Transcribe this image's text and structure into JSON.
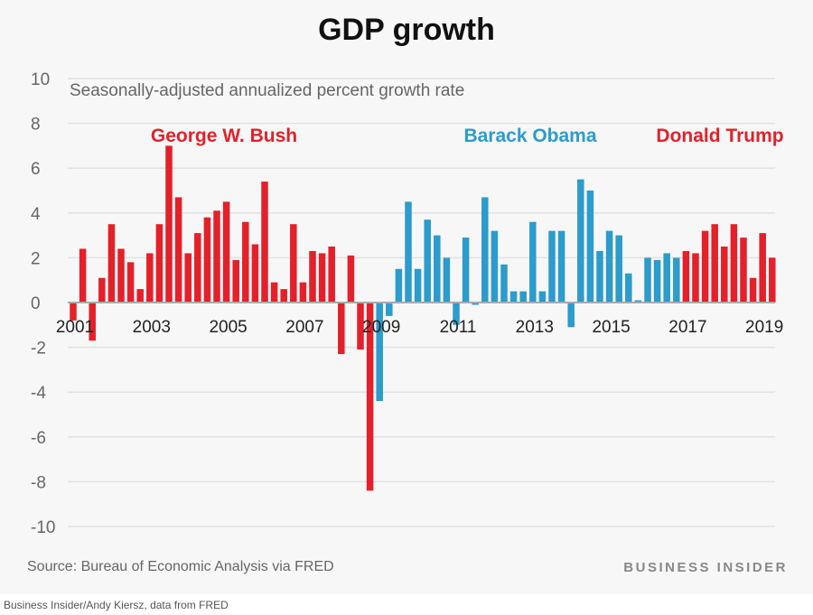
{
  "title": "GDP growth",
  "source": "Source: Bureau of Economic Analysis via FRED",
  "brand": "BUSINESS INSIDER",
  "credit": "Business Insider/Andy Kiersz, data from FRED",
  "chart_data": {
    "type": "bar",
    "title": "GDP growth",
    "subtitle": "Seasonally-adjusted annualized percent growth rate",
    "ylim": [
      -10,
      10
    ],
    "yticks": [
      -10,
      -8,
      -6,
      -4,
      -2,
      0,
      2,
      4,
      6,
      8,
      10
    ],
    "xtick_labels": [
      "2001",
      "2003",
      "2005",
      "2007",
      "2009",
      "2011",
      "2013",
      "2015",
      "2017",
      "2019"
    ],
    "grid": true,
    "colors": {
      "Bush": "#e4202a",
      "Obama": "#2b9ccb",
      "Trump": "#e4202a"
    },
    "annotations": [
      {
        "text": "George W. Bush",
        "color": "#e4202a"
      },
      {
        "text": "Barack Obama",
        "color": "#2b9ccb"
      },
      {
        "text": "Donald Trump",
        "color": "#e4202a"
      }
    ],
    "start_quarter": "2001 Q1",
    "series": [
      {
        "name": "George W. Bush",
        "values": [
          -0.8,
          2.4,
          -1.7,
          1.1,
          3.5,
          2.4,
          1.8,
          0.6,
          2.2,
          3.5,
          7.0,
          4.7,
          2.2,
          3.1,
          3.8,
          4.1,
          4.5,
          1.9,
          3.6,
          2.6,
          5.4,
          0.9,
          0.6,
          3.5,
          0.9,
          2.3,
          2.2,
          2.5,
          -2.3,
          2.1,
          -2.1,
          -8.4
        ]
      },
      {
        "name": "Barack Obama",
        "values": [
          -4.4,
          -0.6,
          1.5,
          4.5,
          1.5,
          3.7,
          3.0,
          2.0,
          -1.0,
          2.9,
          -0.1,
          4.7,
          3.2,
          1.7,
          0.5,
          0.5,
          3.6,
          0.5,
          3.2,
          3.2,
          -1.1,
          5.5,
          5.0,
          2.3,
          3.2,
          3.0,
          1.3,
          0.1,
          2.0,
          1.9,
          2.2,
          2.0
        ]
      },
      {
        "name": "Donald Trump",
        "values": [
          2.3,
          2.2,
          3.2,
          3.5,
          2.5,
          3.5,
          2.9,
          1.1,
          3.1,
          2.0
        ]
      }
    ]
  }
}
